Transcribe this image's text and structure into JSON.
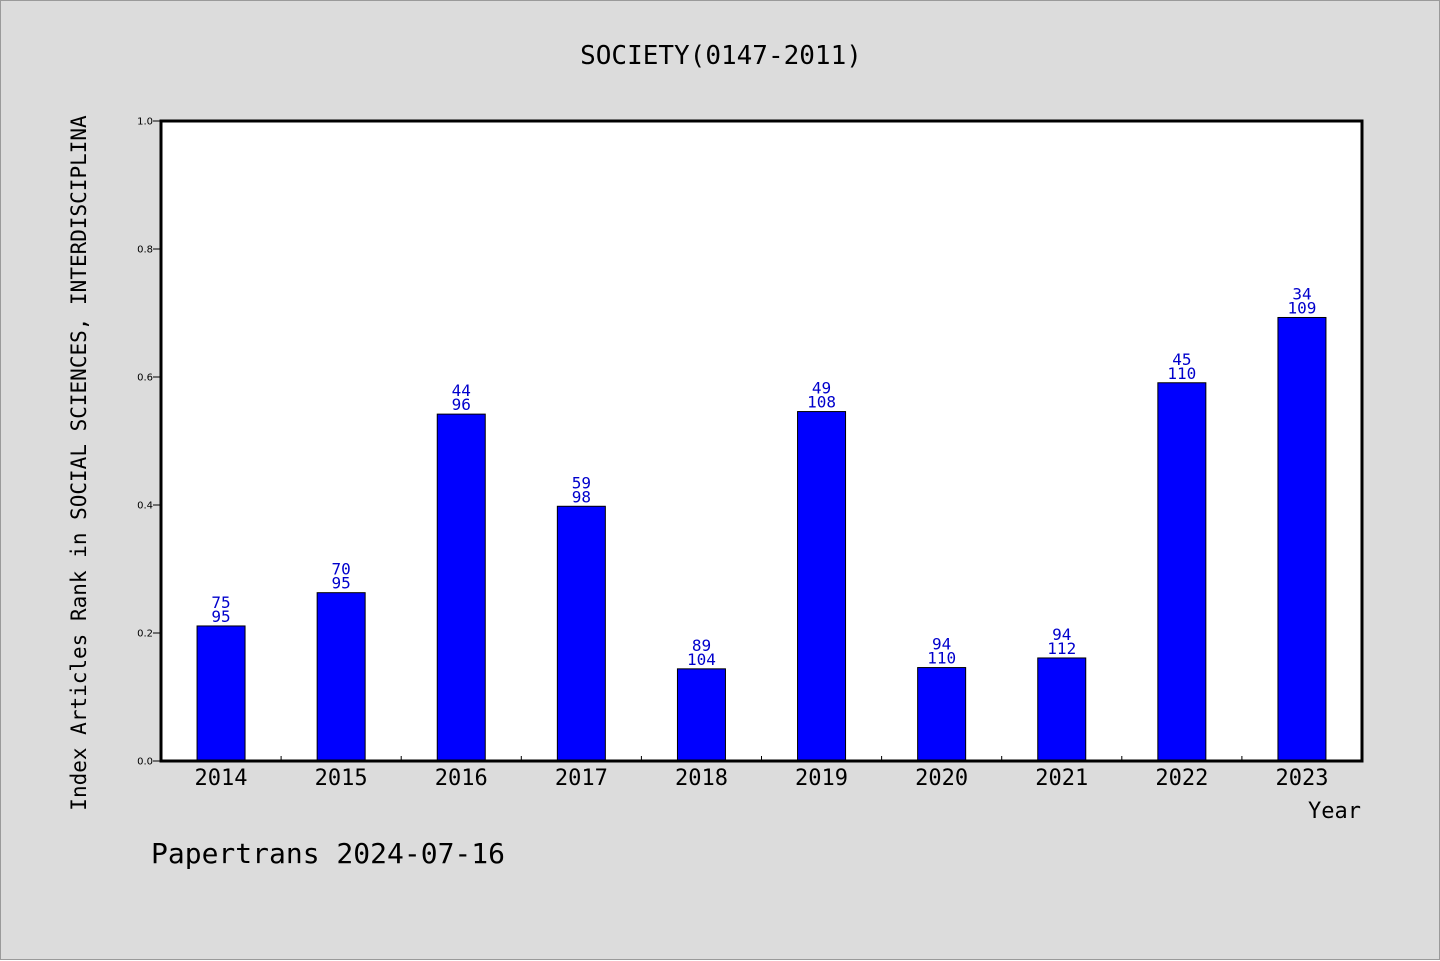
{
  "chart_data": {
    "type": "bar",
    "title": "SOCIETY(0147-2011)",
    "xlabel": "Year",
    "ylabel": "Index Articles Rank in SOCIAL SCIENCES, INTERDISCIPLINA",
    "categories": [
      "2014",
      "2015",
      "2016",
      "2017",
      "2018",
      "2019",
      "2020",
      "2021",
      "2022",
      "2023"
    ],
    "values": [
      0.211,
      0.263,
      0.542,
      0.398,
      0.144,
      0.546,
      0.146,
      0.161,
      0.591,
      0.693
    ],
    "rank_labels": [
      "75",
      "70",
      "44",
      "59",
      "89",
      "49",
      "94",
      "94",
      "45",
      "34"
    ],
    "total_labels": [
      "95",
      "95",
      "96",
      "98",
      "104",
      "108",
      "110",
      "112",
      "110",
      "109"
    ],
    "ylim": [
      0,
      1.0
    ],
    "yticks": [
      "0.0",
      "0.2",
      "0.4",
      "0.6",
      "0.8",
      "1.0"
    ],
    "bar_color": "#0000ff",
    "label_color": "#0000cc",
    "grid": false,
    "legend": "none"
  },
  "footer": {
    "text": "Papertrans 2024-07-16"
  }
}
